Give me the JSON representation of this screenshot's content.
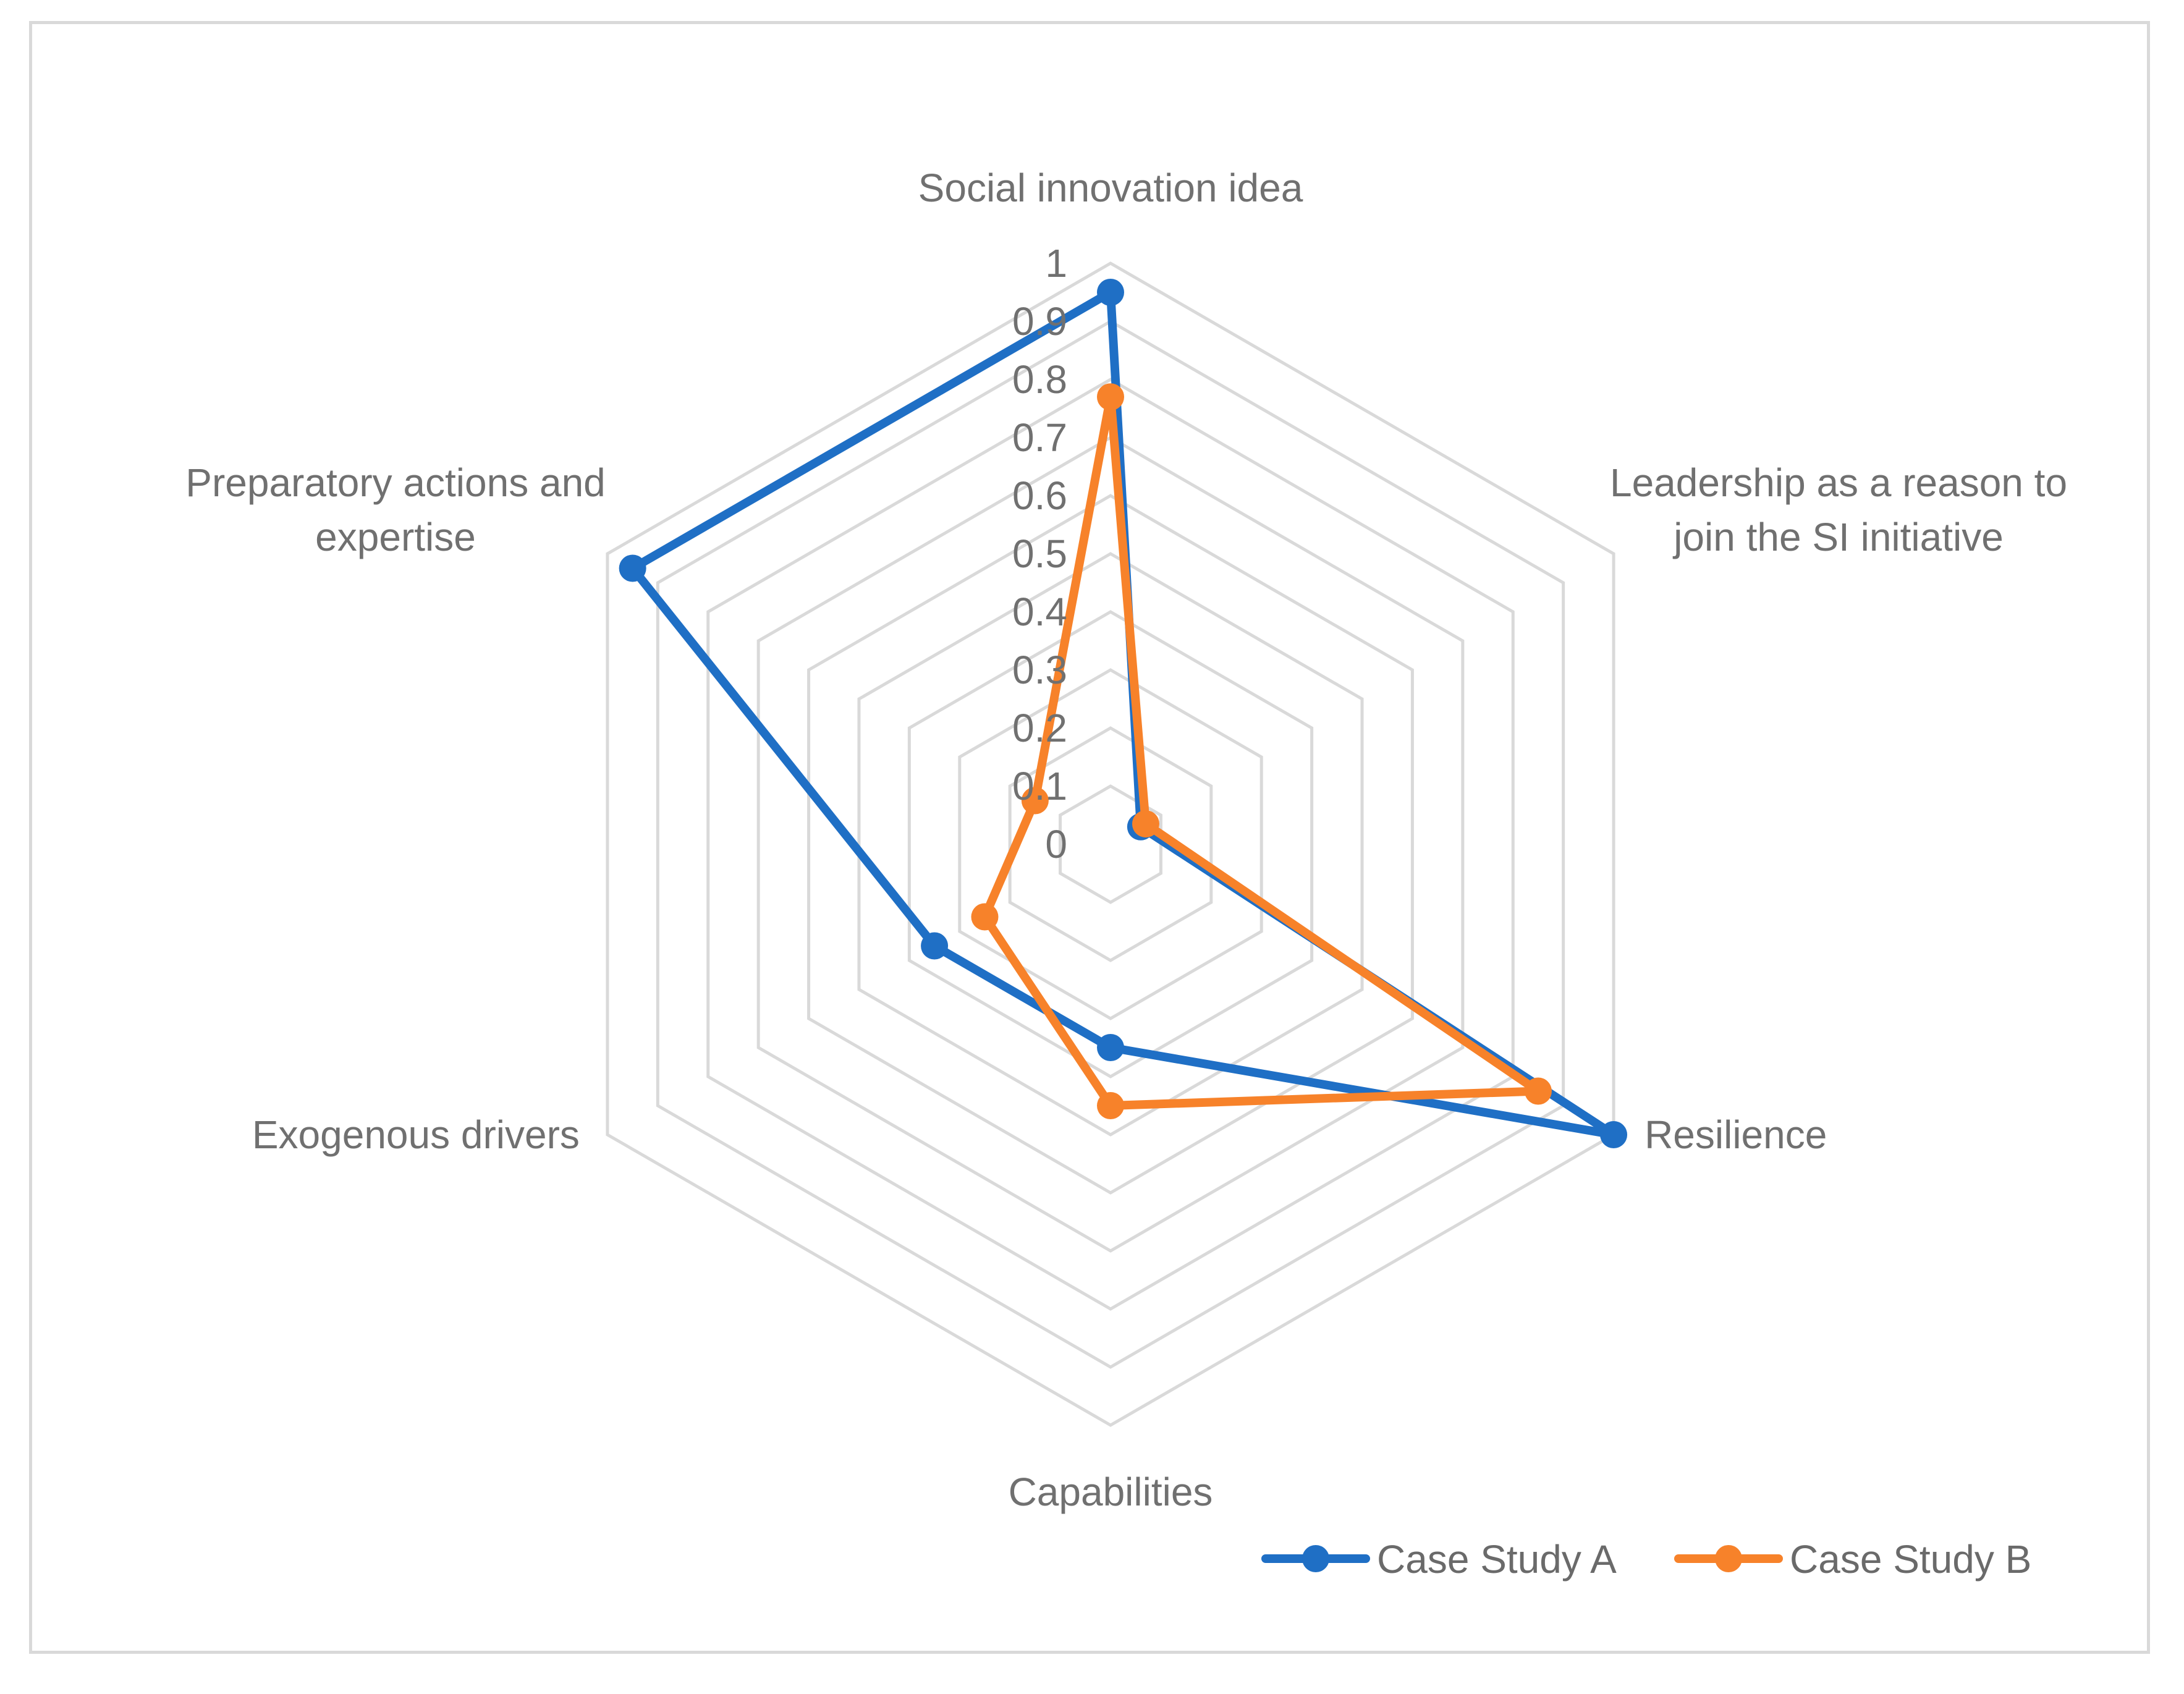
{
  "chart_data": {
    "type": "radar",
    "title": "",
    "axes": [
      [
        "Social innovation idea"
      ],
      [
        "Leadership as a reason to",
        "join the SI initiative"
      ],
      [
        "Resilience"
      ],
      [
        "Capabilities"
      ],
      [
        "Exogenous drivers"
      ],
      [
        "Preparatory actions and",
        "expertise"
      ]
    ],
    "ticks": [
      "0",
      "0.1",
      "0.2",
      "0.3",
      "0.4",
      "0.5",
      "0.6",
      "0.7",
      "0.8",
      "0.9",
      "1"
    ],
    "rlim": [
      0,
      1
    ],
    "grid": true,
    "legend_position": "bottom-right",
    "series": [
      {
        "name": "Case Study A",
        "color": "#1f6fc5",
        "values": [
          0.95,
          0.06,
          1.0,
          0.35,
          0.35,
          0.95
        ]
      },
      {
        "name": "Case Study B",
        "color": "#f7822a",
        "values": [
          0.77,
          0.07,
          0.85,
          0.45,
          0.25,
          0.15
        ]
      }
    ]
  }
}
